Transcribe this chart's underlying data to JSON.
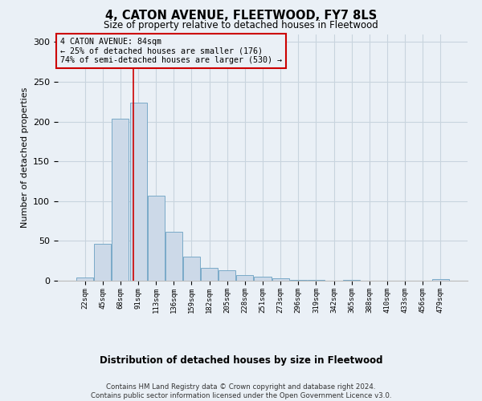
{
  "title": "4, CATON AVENUE, FLEETWOOD, FY7 8LS",
  "subtitle": "Size of property relative to detached houses in Fleetwood",
  "xlabel": "Distribution of detached houses by size in Fleetwood",
  "ylabel": "Number of detached properties",
  "categories": [
    "22sqm",
    "45sqm",
    "68sqm",
    "91sqm",
    "113sqm",
    "136sqm",
    "159sqm",
    "182sqm",
    "205sqm",
    "228sqm",
    "251sqm",
    "273sqm",
    "296sqm",
    "319sqm",
    "342sqm",
    "365sqm",
    "388sqm",
    "410sqm",
    "433sqm",
    "456sqm",
    "479sqm"
  ],
  "values": [
    4,
    46,
    204,
    224,
    107,
    62,
    30,
    16,
    13,
    7,
    5,
    3,
    1,
    1,
    0,
    1,
    0,
    0,
    0,
    0,
    2
  ],
  "bar_color": "#ccd9e8",
  "bar_edge_color": "#7aaac8",
  "grid_color": "#c8d4de",
  "background_color": "#eaf0f6",
  "property_line_color": "#cc0000",
  "annotation_title": "4 CATON AVENUE: 84sqm",
  "annotation_line1": "← 25% of detached houses are smaller (176)",
  "annotation_line2": "74% of semi-detached houses are larger (530) →",
  "annotation_box_color": "#cc0000",
  "ylim": [
    0,
    310
  ],
  "property_line_index": 2.74,
  "footer_line1": "Contains HM Land Registry data © Crown copyright and database right 2024.",
  "footer_line2": "Contains public sector information licensed under the Open Government Licence v3.0."
}
